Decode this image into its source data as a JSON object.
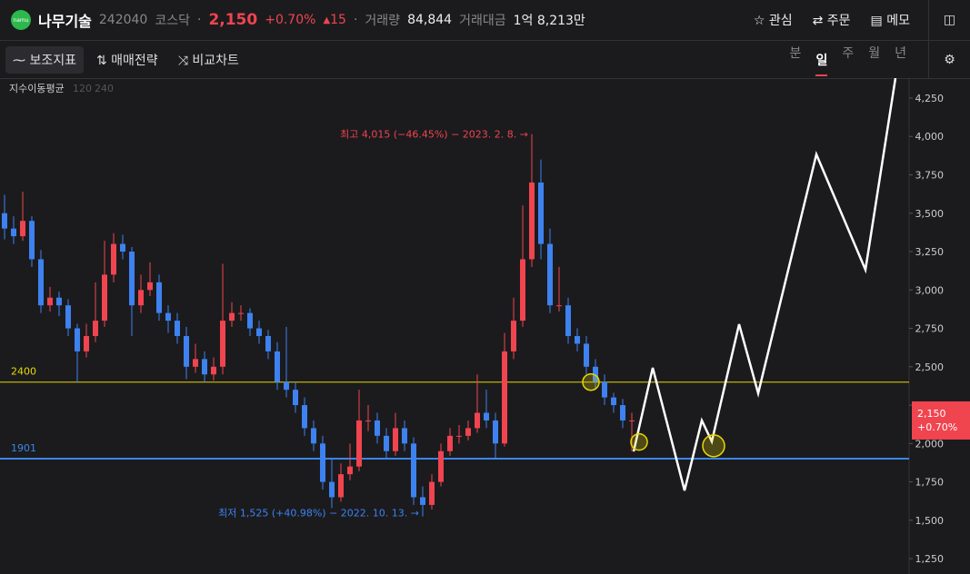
{
  "header": {
    "logo": "namu",
    "name": "나무기술",
    "code": "242040",
    "market": "코스닥",
    "price": "2,150",
    "change_pct": "+0.70%",
    "change": "15",
    "volume_label": "거래량",
    "volume": "84,844",
    "amount_label": "거래대금",
    "amount": "1억 8,213만",
    "buttons": [
      "관심",
      "주문",
      "메모"
    ]
  },
  "toolbar": {
    "tools": [
      "보조지표",
      "매매전략",
      "비교차트"
    ],
    "periods": [
      "분",
      "일",
      "주",
      "월",
      "년"
    ],
    "active_period": 1
  },
  "chart_data": {
    "type": "candlestick",
    "indicator": "지수이동평균",
    "indicator_params": [
      "120",
      "240"
    ],
    "ylim": [
      1150,
      4380
    ],
    "yticks": [
      {
        "value": 1250,
        "label": "1,250"
      },
      {
        "value": 1500,
        "label": "1,500"
      },
      {
        "value": 1750,
        "label": "1,750"
      },
      {
        "value": 2000,
        "label": "2,000"
      },
      {
        "value": 2250,
        "label": "2,250"
      },
      {
        "value": 2500,
        "label": "2,500"
      },
      {
        "value": 2750,
        "label": "2,750"
      },
      {
        "value": 3000,
        "label": "3,000"
      },
      {
        "value": 3250,
        "label": "3,250"
      },
      {
        "value": 3500,
        "label": "3,500"
      },
      {
        "value": 3750,
        "label": "3,750"
      },
      {
        "value": 4000,
        "label": "4,000"
      },
      {
        "value": 4250,
        "label": "4,250"
      }
    ],
    "xlim": [
      -0.5,
      99.5
    ],
    "up_color": "#f0444f",
    "down_color": "#3d82f0",
    "ohlc": [
      [
        3500,
        3620,
        3330,
        3400
      ],
      [
        3400,
        3480,
        3300,
        3350
      ],
      [
        3350,
        3640,
        3320,
        3450
      ],
      [
        3450,
        3480,
        3150,
        3200
      ],
      [
        3200,
        3260,
        2850,
        2900
      ],
      [
        2900,
        3020,
        2860,
        2950
      ],
      [
        2950,
        2990,
        2830,
        2900
      ],
      [
        2900,
        2940,
        2700,
        2750
      ],
      [
        2750,
        2780,
        2400,
        2600
      ],
      [
        2600,
        2780,
        2560,
        2700
      ],
      [
        2700,
        3050,
        2660,
        2800
      ],
      [
        2800,
        3320,
        2760,
        3100
      ],
      [
        3100,
        3370,
        3050,
        3300
      ],
      [
        3300,
        3360,
        3200,
        3250
      ],
      [
        3250,
        3280,
        2700,
        2900
      ],
      [
        2900,
        3100,
        2850,
        3000
      ],
      [
        3000,
        3180,
        2960,
        3050
      ],
      [
        3050,
        3100,
        2800,
        2850
      ],
      [
        2850,
        2900,
        2720,
        2800
      ],
      [
        2800,
        2850,
        2650,
        2700
      ],
      [
        2700,
        2760,
        2420,
        2500
      ],
      [
        2500,
        2650,
        2460,
        2550
      ],
      [
        2550,
        2600,
        2400,
        2450
      ],
      [
        2450,
        2560,
        2410,
        2500
      ],
      [
        2500,
        3170,
        2450,
        2800
      ],
      [
        2800,
        2920,
        2760,
        2850
      ],
      [
        2850,
        2900,
        2800,
        2850
      ],
      [
        2850,
        2880,
        2700,
        2750
      ],
      [
        2750,
        2800,
        2650,
        2700
      ],
      [
        2700,
        2740,
        2550,
        2600
      ],
      [
        2600,
        2660,
        2350,
        2400
      ],
      [
        2400,
        2760,
        2300,
        2350
      ],
      [
        2350,
        2400,
        2200,
        2250
      ],
      [
        2250,
        2300,
        2050,
        2100
      ],
      [
        2100,
        2150,
        1950,
        2000
      ],
      [
        2000,
        2050,
        1700,
        1750
      ],
      [
        1750,
        1900,
        1580,
        1650
      ],
      [
        1650,
        1870,
        1620,
        1800
      ],
      [
        1800,
        2000,
        1760,
        1850
      ],
      [
        1850,
        2350,
        1820,
        2150
      ],
      [
        2150,
        2250,
        2080,
        2150
      ],
      [
        2150,
        2200,
        2000,
        2050
      ],
      [
        2050,
        2100,
        1900,
        1950
      ],
      [
        1950,
        2200,
        1920,
        2100
      ],
      [
        2100,
        2150,
        1950,
        2000
      ],
      [
        2000,
        2040,
        1600,
        1650
      ],
      [
        1650,
        1720,
        1525,
        1600
      ],
      [
        1600,
        1800,
        1570,
        1750
      ],
      [
        1750,
        2000,
        1720,
        1950
      ],
      [
        1950,
        2100,
        1920,
        2050
      ],
      [
        2050,
        2120,
        2000,
        2050
      ],
      [
        2050,
        2150,
        2020,
        2100
      ],
      [
        2100,
        2450,
        2070,
        2200
      ],
      [
        2200,
        2350,
        2100,
        2150
      ],
      [
        2150,
        2200,
        1900,
        2000
      ],
      [
        2000,
        2720,
        1980,
        2600
      ],
      [
        2600,
        2950,
        2550,
        2800
      ],
      [
        2800,
        3550,
        2760,
        3200
      ],
      [
        3200,
        4015,
        3150,
        3700
      ],
      [
        3700,
        3850,
        3200,
        3300
      ],
      [
        3300,
        3400,
        2850,
        2900
      ],
      [
        2900,
        3150,
        2860,
        2900
      ],
      [
        2900,
        2950,
        2650,
        2700
      ],
      [
        2700,
        2750,
        2600,
        2650
      ],
      [
        2650,
        2700,
        2450,
        2500
      ],
      [
        2500,
        2550,
        2350,
        2400
      ],
      [
        2400,
        2450,
        2250,
        2300
      ],
      [
        2300,
        2330,
        2200,
        2250
      ],
      [
        2250,
        2290,
        2100,
        2150
      ],
      [
        2150,
        2200,
        1950,
        2150
      ]
    ],
    "hlines": [
      {
        "value": 2400,
        "color": "#e8d800"
      },
      {
        "value": 1901,
        "color": "#3a86e8"
      }
    ],
    "annotations": [
      {
        "text": "최고 4,015 (−46.45%) − 2023. 2. 8. →",
        "index": 58,
        "value": 4015,
        "color": "#f0444f"
      },
      {
        "text": "최저 1,525 (+40.98%) − 2022. 10. 13. →",
        "index": 46,
        "value": 1525,
        "color": "#3d82f0"
      }
    ],
    "drawing": {
      "color": "#ffffff",
      "x": [
        69.2,
        71.3,
        74.8,
        76.7,
        77.8,
        80.8,
        82.9,
        89.3,
        94.7,
        98
      ],
      "values": [
        1948,
        2493,
        1694,
        2150,
        2013,
        2777,
        2327,
        3883,
        3132,
        4380
      ]
    },
    "circles": [
      {
        "x": 64.5,
        "value": 2400
      },
      {
        "x": 69.8,
        "value": 2010
      },
      {
        "x": 78,
        "value": 1985
      }
    ]
  }
}
